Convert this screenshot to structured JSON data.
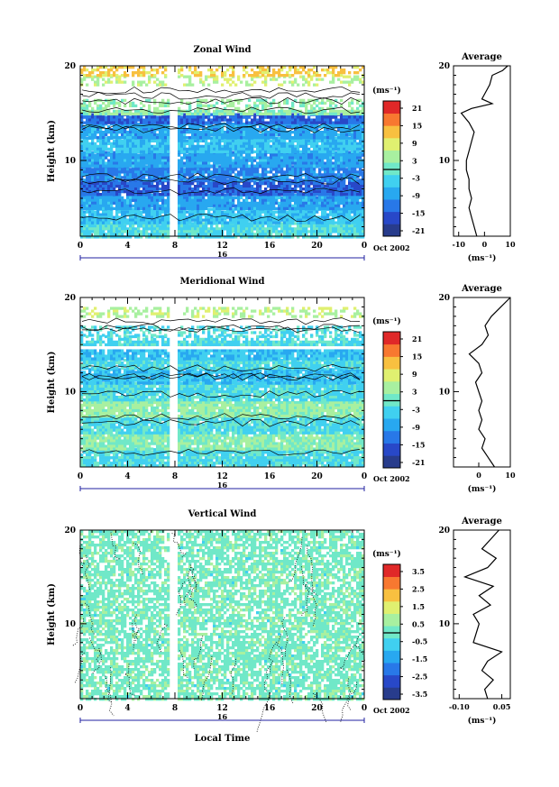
{
  "figure": {
    "x_tick_labels": [
      "0",
      "4",
      "8",
      "12",
      "16",
      "20",
      "0"
    ],
    "date_day_label": "16",
    "date_label": "Oct 2002",
    "x_axis_title": "Local Time",
    "y_axis_title": "Height (km)",
    "y_tick_labels": [
      "20",
      "10"
    ],
    "avg_title": "Average",
    "avg_xlabel": "(ms⁻¹)",
    "colorbar_unit": "(ms⁻¹)"
  },
  "palette": [
    "#283c8c",
    "#2848c8",
    "#2878e8",
    "#28a8f0",
    "#40d0f0",
    "#70e8c8",
    "#a8f0a0",
    "#e0f070",
    "#f8c040",
    "#f87830",
    "#e02828"
  ],
  "chart_data": [
    {
      "type": "heatmap",
      "title": "Zonal Wind",
      "x_range_hours": [
        0,
        24
      ],
      "y_range_km": [
        2,
        20
      ],
      "gap_hours": [
        7.5,
        8.0
      ],
      "colorbar": {
        "labels": [
          "21",
          "15",
          "9",
          "3",
          "-3",
          "-9",
          "-15",
          "-21"
        ],
        "range": [
          -24,
          24
        ]
      },
      "layers": [
        {
          "z0": 2,
          "z1": 3.5,
          "value": -3
        },
        {
          "z0": 3.5,
          "z1": 5,
          "value": -6
        },
        {
          "z0": 5,
          "z1": 6.5,
          "value": -9
        },
        {
          "z0": 6.5,
          "z1": 8,
          "value": -15
        },
        {
          "z0": 8,
          "z1": 9.5,
          "value": -12
        },
        {
          "z0": 9.5,
          "z1": 11,
          "value": -9
        },
        {
          "z0": 11,
          "z1": 12.5,
          "value": -6
        },
        {
          "z0": 12.5,
          "z1": 14,
          "value": -9
        },
        {
          "z0": 14,
          "z1": 15,
          "value": -15
        },
        {
          "z0": 15,
          "z1": 16.5,
          "value": 3
        },
        {
          "z0": 18,
          "z1": 19,
          "value": 6
        },
        {
          "z0": 19,
          "z1": 20,
          "value": 12
        }
      ],
      "average": {
        "xlim": [
          -12,
          10
        ],
        "xticks": [
          "-10",
          "0",
          "10"
        ],
        "z": [
          2,
          3,
          4,
          5,
          6,
          7,
          8,
          9,
          10,
          11,
          12,
          13,
          14,
          15,
          15.5,
          16,
          16.5,
          17,
          18,
          19,
          19.5,
          20
        ],
        "u": [
          -3,
          -4,
          -5,
          -6,
          -5,
          -6,
          -6,
          -7,
          -7,
          -6,
          -5,
          -4,
          -6,
          -9,
          -5,
          3,
          -1,
          0,
          2,
          3,
          7,
          9
        ]
      }
    },
    {
      "type": "heatmap",
      "title": "Meridional Wind",
      "x_range_hours": [
        0,
        24
      ],
      "y_range_km": [
        2,
        20
      ],
      "gap_hours": [
        7.5,
        8.0
      ],
      "colorbar": {
        "labels": [
          "21",
          "15",
          "9",
          "3",
          "-3",
          "-9",
          "-15",
          "-21"
        ],
        "range": [
          -24,
          24
        ]
      },
      "layers": [
        {
          "z0": 2,
          "z1": 4,
          "value": -3
        },
        {
          "z0": 4,
          "z1": 5.5,
          "value": 2
        },
        {
          "z0": 5.5,
          "z1": 7.5,
          "value": -3
        },
        {
          "z0": 7.5,
          "z1": 9,
          "value": 3
        },
        {
          "z0": 9,
          "z1": 11,
          "value": -3
        },
        {
          "z0": 11,
          "z1": 12.5,
          "value": -6
        },
        {
          "z0": 12.5,
          "z1": 13.5,
          "value": -3
        },
        {
          "z0": 13.5,
          "z1": 14.5,
          "value": -6
        },
        {
          "z0": 15,
          "z1": 16,
          "value": -3
        },
        {
          "z0": 16,
          "z1": 17,
          "value": -3
        },
        {
          "z0": 18,
          "z1": 19,
          "value": 6
        }
      ],
      "average": {
        "xlim": [
          -8,
          10
        ],
        "xticks": [
          "0",
          "10"
        ],
        "z": [
          2,
          3,
          4,
          5,
          6,
          7,
          8,
          9,
          10,
          11,
          12,
          13,
          14,
          15,
          16,
          17,
          18,
          19,
          20
        ],
        "u": [
          5,
          3,
          1,
          2,
          0,
          1,
          0,
          1,
          0,
          -1,
          1,
          0,
          -3,
          1,
          3,
          2,
          4,
          7,
          10
        ]
      }
    },
    {
      "type": "heatmap",
      "title": "Vertical Wind",
      "x_range_hours": [
        0,
        24
      ],
      "y_range_km": [
        2,
        20
      ],
      "gap_hours": [
        7.5,
        8.0
      ],
      "colorbar": {
        "labels": [
          "3.5",
          "2.5",
          "1.5",
          "0.5",
          "-0.5",
          "-1.5",
          "-2.5",
          "-3.5"
        ],
        "range": [
          -4,
          4
        ]
      },
      "layers": [
        {
          "z0": 2,
          "z1": 20,
          "value": 0.1
        }
      ],
      "average": {
        "xlim": [
          -0.12,
          0.08
        ],
        "xticks": [
          "-0.10",
          "0.05"
        ],
        "z": [
          2,
          3,
          4,
          5,
          6,
          7,
          8,
          9,
          10,
          11,
          12,
          13,
          14,
          15,
          16,
          17,
          18,
          19,
          20
        ],
        "u": [
          0,
          -0.01,
          0.02,
          -0.02,
          0.0,
          0.05,
          -0.05,
          -0.04,
          -0.03,
          -0.05,
          0.01,
          -0.03,
          0.02,
          -0.08,
          0.0,
          0.03,
          -0.02,
          0.01,
          0.04
        ]
      }
    }
  ]
}
